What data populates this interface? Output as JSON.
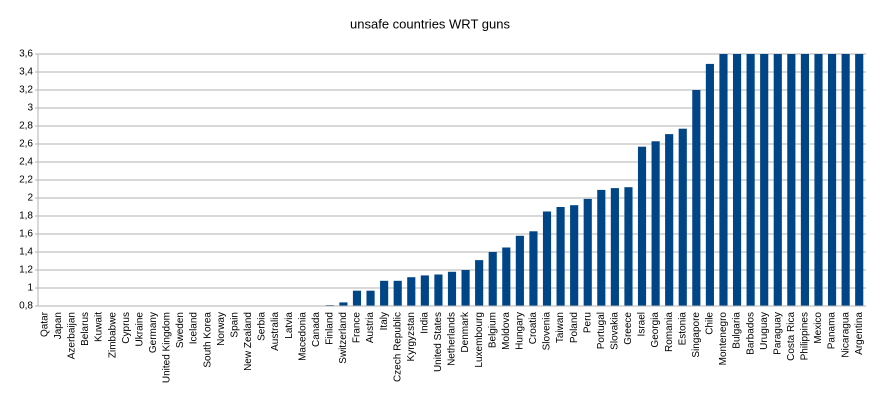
{
  "chart_data": {
    "type": "bar",
    "title": "unsafe countries WRT guns",
    "categories": [
      "Qatar",
      "Japan",
      "Azerbaijan",
      "Belarus",
      "Kuwait",
      "Zimbabwe",
      "Cyprus",
      "Ukraine",
      "Germany",
      "United Kingdom",
      "Sweden",
      "Iceland",
      "South Korea",
      "Norway",
      "Spain",
      "New Zealand",
      "Serbia",
      "Australia",
      "Latvia",
      "Macedonia",
      "Canada",
      "Finland",
      "Switzerland",
      "France",
      "Austria",
      "Italy",
      "Czech Republic",
      "Kyrgyzstan",
      "India",
      "United States",
      "Netherlands",
      "Denmark",
      "Luxembourg",
      "Belgium",
      "Moldova",
      "Hungary",
      "Croatia",
      "Slovenia",
      "Taiwan",
      "Poland",
      "Peru",
      "Portugal",
      "Slovakia",
      "Greece",
      "Israel",
      "Georgia",
      "Romania",
      "Estonia",
      "Singapore",
      "Chile",
      "Montenegro",
      "Bulgaria",
      "Barbados",
      "Uruguay",
      "Paraguay",
      "Costa Rica",
      "Philippines",
      "Mexico",
      "Panama",
      "Nicaragua",
      "Argentina"
    ],
    "values": [
      null,
      null,
      null,
      null,
      null,
      null,
      null,
      null,
      null,
      null,
      null,
      null,
      null,
      null,
      null,
      null,
      null,
      null,
      null,
      null,
      null,
      0.81,
      0.84,
      0.97,
      0.97,
      1.08,
      1.08,
      1.12,
      1.14,
      1.15,
      1.18,
      1.2,
      1.31,
      1.4,
      1.45,
      1.58,
      1.63,
      1.85,
      1.9,
      1.92,
      1.99,
      2.09,
      2.11,
      2.12,
      2.57,
      2.63,
      2.71,
      2.77,
      3.2,
      3.49,
      3.6,
      3.6,
      3.6,
      3.6,
      3.6,
      3.6,
      3.6,
      3.6,
      3.6,
      3.6,
      3.6
    ],
    "color": "#004586",
    "ylim": [
      0.8,
      3.6
    ],
    "yticks": [
      {
        "value": 0.8,
        "label": "0,8"
      },
      {
        "value": 1,
        "label": "1"
      },
      {
        "value": 1.2,
        "label": "1,2"
      },
      {
        "value": 1.4,
        "label": "1,4"
      },
      {
        "value": 1.6,
        "label": "1,6"
      },
      {
        "value": 1.8,
        "label": "1,8"
      },
      {
        "value": 2,
        "label": "2"
      },
      {
        "value": 2.2,
        "label": "2,2"
      },
      {
        "value": 2.4,
        "label": "2,4"
      },
      {
        "value": 2.6,
        "label": "2,6"
      },
      {
        "value": 2.8,
        "label": "2,8"
      },
      {
        "value": 3,
        "label": "3"
      },
      {
        "value": 3.2,
        "label": "3,2"
      },
      {
        "value": 3.4,
        "label": "3,4"
      },
      {
        "value": 3.6,
        "label": "3,6"
      }
    ],
    "grid": true
  }
}
